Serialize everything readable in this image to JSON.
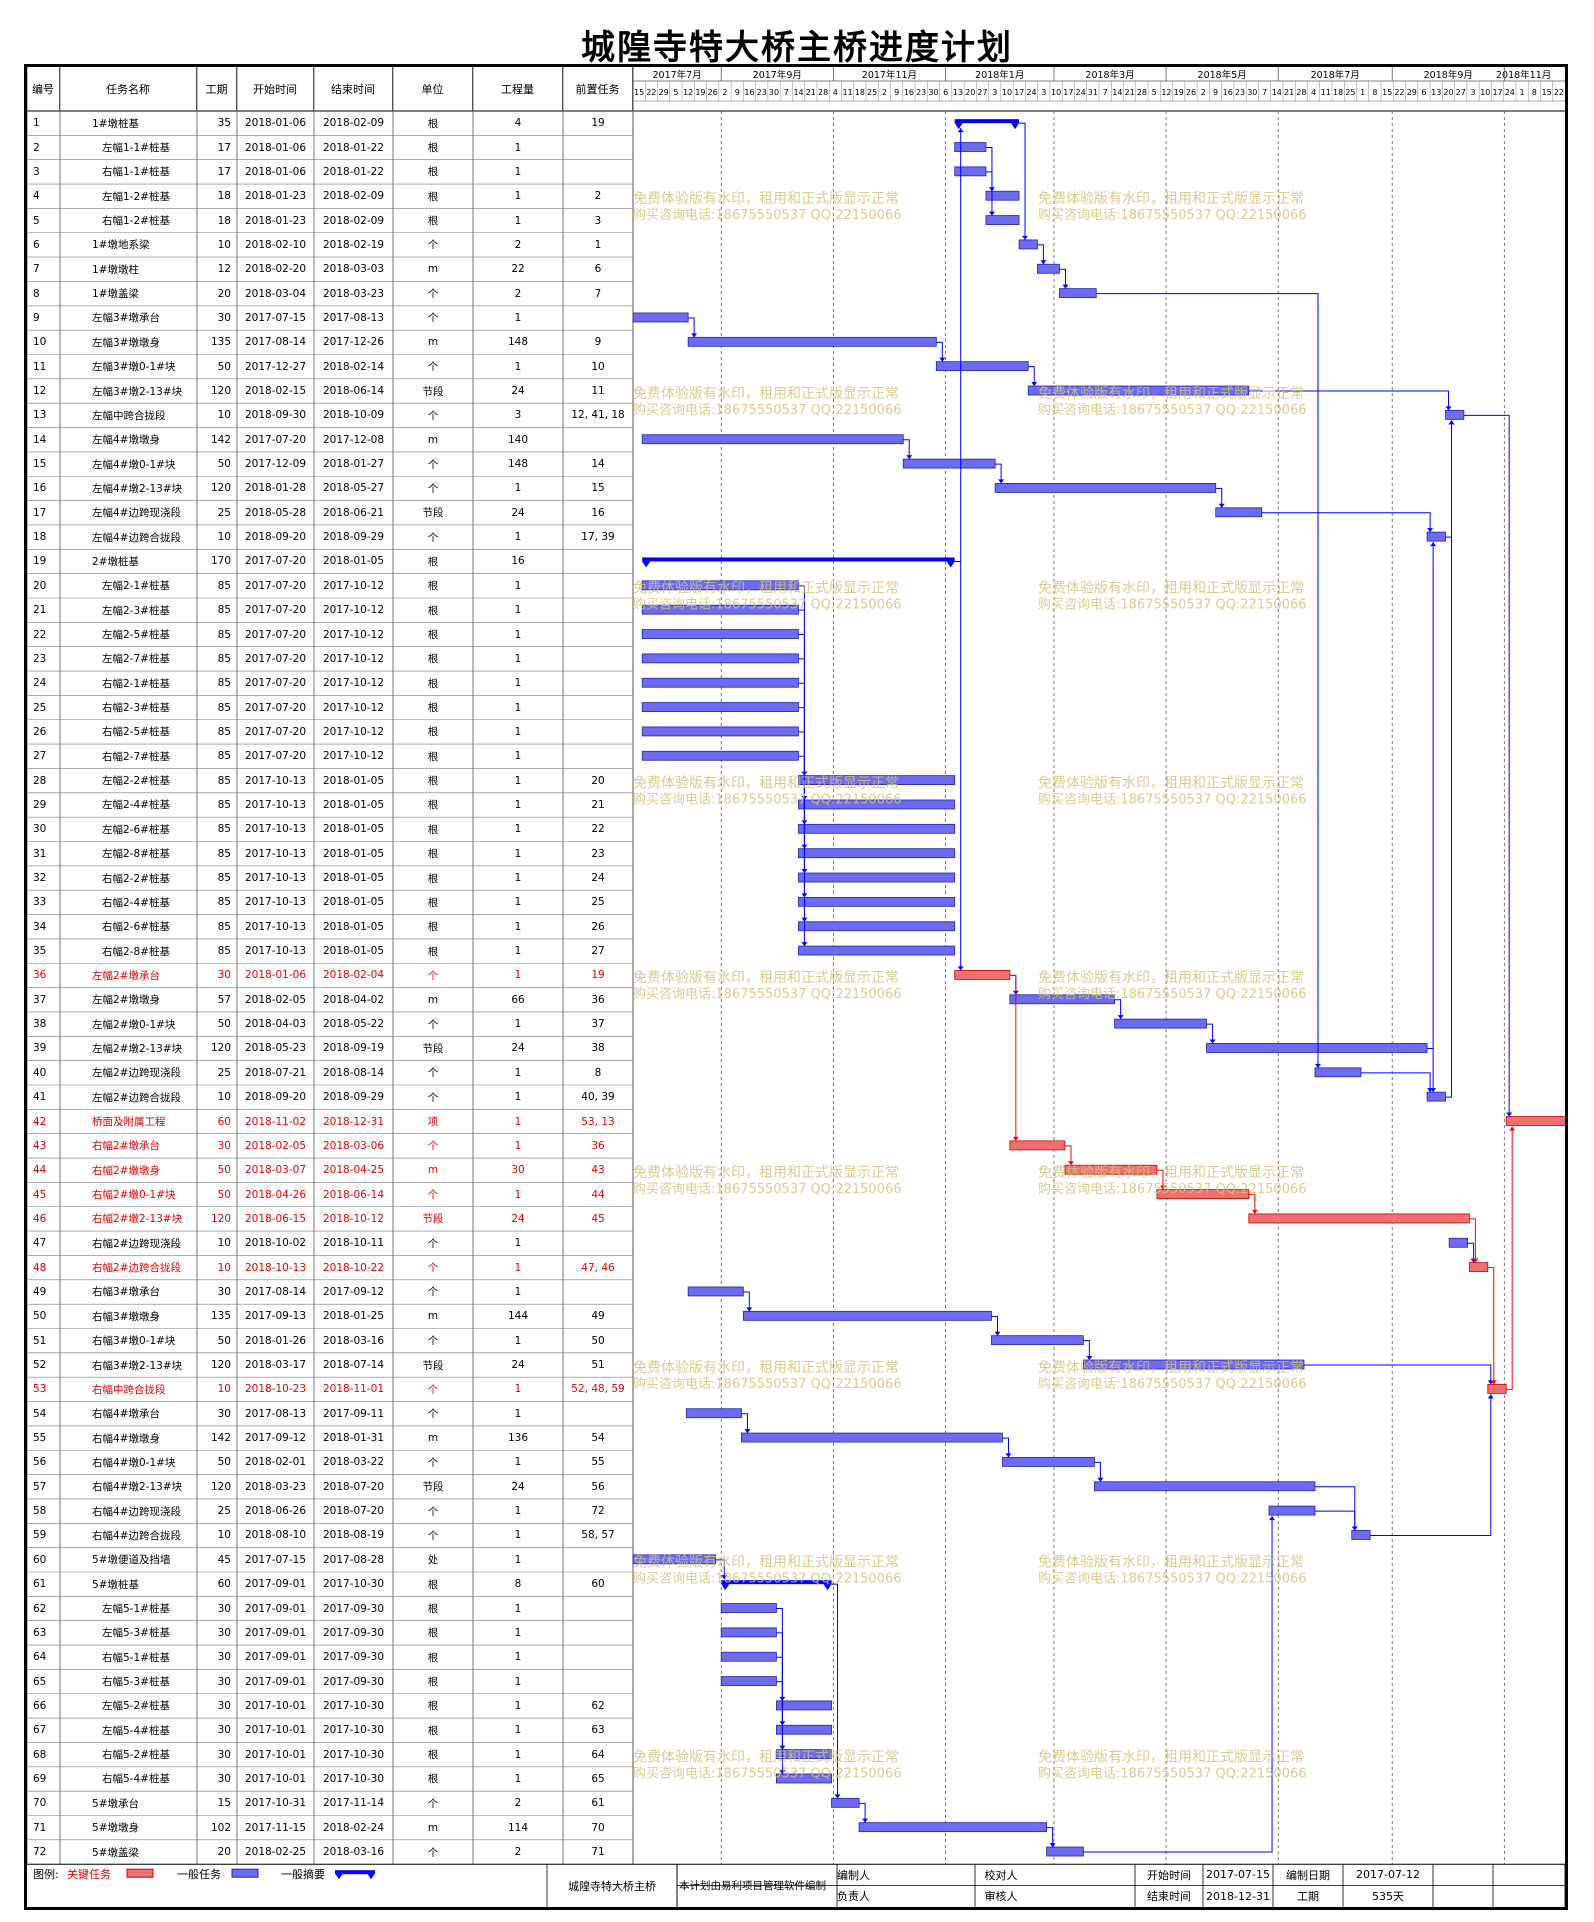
{
  "title": "城隍寺特大桥主桥进度计划",
  "columns": [
    "编号",
    "任务名称",
    "工期",
    "开始时间",
    "结束时间",
    "单位",
    "工程量",
    "前置任务"
  ],
  "timeline": {
    "months": [
      "2017年7月",
      "2017年9月",
      "2017年11月",
      "2018年1月",
      "2018年3月",
      "2018年5月",
      "2018年7月",
      "2018年9月",
      "2018年11月"
    ],
    "days": [
      "15",
      "22",
      "29",
      "5",
      "12",
      "19",
      "26",
      "2",
      "9",
      "16",
      "23",
      "30",
      "7",
      "14",
      "21",
      "28",
      "4",
      "11",
      "18",
      "25",
      "2",
      "9",
      "16",
      "23",
      "30",
      "6",
      "13",
      "20",
      "27",
      "3",
      "10",
      "17",
      "24",
      "3",
      "10",
      "17",
      "24",
      "31",
      "7",
      "14",
      "21",
      "28",
      "5",
      "12",
      "19",
      "26",
      "2",
      "9",
      "16",
      "23",
      "30",
      "7",
      "14",
      "21",
      "28",
      "4",
      "11",
      "18",
      "25",
      "1",
      "8",
      "15",
      "22",
      "29",
      "6",
      "13",
      "20",
      "27",
      "3",
      "10",
      "17",
      "24",
      "1",
      "8",
      "15",
      "22"
    ]
  },
  "tasks": [
    {
      "id": "1",
      "name": "1#墩桩基",
      "dur": "35",
      "start": "2018-01-06",
      "end": "2018-02-09",
      "unit": "根",
      "qty": "4",
      "pred": "19",
      "type": "summary",
      "level": 0
    },
    {
      "id": "2",
      "name": "左幅1-1#桩基",
      "dur": "17",
      "start": "2018-01-06",
      "end": "2018-01-22",
      "unit": "根",
      "qty": "1",
      "pred": "",
      "type": "normal",
      "level": 1
    },
    {
      "id": "3",
      "name": "右幅1-1#桩基",
      "dur": "17",
      "start": "2018-01-06",
      "end": "2018-01-22",
      "unit": "根",
      "qty": "1",
      "pred": "",
      "type": "normal",
      "level": 1
    },
    {
      "id": "4",
      "name": "左幅1-2#桩基",
      "dur": "18",
      "start": "2018-01-23",
      "end": "2018-02-09",
      "unit": "根",
      "qty": "1",
      "pred": "2",
      "type": "normal",
      "level": 1
    },
    {
      "id": "5",
      "name": "右幅1-2#桩基",
      "dur": "18",
      "start": "2018-01-23",
      "end": "2018-02-09",
      "unit": "根",
      "qty": "1",
      "pred": "3",
      "type": "normal",
      "level": 1
    },
    {
      "id": "6",
      "name": "1#墩地系梁",
      "dur": "10",
      "start": "2018-02-10",
      "end": "2018-02-19",
      "unit": "个",
      "qty": "2",
      "pred": "1",
      "type": "normal",
      "level": 0
    },
    {
      "id": "7",
      "name": "1#墩墩柱",
      "dur": "12",
      "start": "2018-02-20",
      "end": "2018-03-03",
      "unit": "m",
      "qty": "22",
      "pred": "6",
      "type": "normal",
      "level": 0
    },
    {
      "id": "8",
      "name": "1#墩盖梁",
      "dur": "20",
      "start": "2018-03-04",
      "end": "2018-03-23",
      "unit": "个",
      "qty": "2",
      "pred": "7",
      "type": "normal",
      "level": 0
    },
    {
      "id": "9",
      "name": "左幅3#墩承台",
      "dur": "30",
      "start": "2017-07-15",
      "end": "2017-08-13",
      "unit": "个",
      "qty": "1",
      "pred": "",
      "type": "normal",
      "level": 0
    },
    {
      "id": "10",
      "name": "左幅3#墩墩身",
      "dur": "135",
      "start": "2017-08-14",
      "end": "2017-12-26",
      "unit": "m",
      "qty": "148",
      "pred": "9",
      "type": "normal",
      "level": 0
    },
    {
      "id": "11",
      "name": "左幅3#墩0-1#块",
      "dur": "50",
      "start": "2017-12-27",
      "end": "2018-02-14",
      "unit": "个",
      "qty": "1",
      "pred": "10",
      "type": "normal",
      "level": 0
    },
    {
      "id": "12",
      "name": "左幅3#墩2-13#块",
      "dur": "120",
      "start": "2018-02-15",
      "end": "2018-06-14",
      "unit": "节段",
      "qty": "24",
      "pred": "11",
      "type": "normal",
      "level": 0
    },
    {
      "id": "13",
      "name": "左幅中跨合拢段",
      "dur": "10",
      "start": "2018-09-30",
      "end": "2018-10-09",
      "unit": "个",
      "qty": "3",
      "pred": "12, 41, 18",
      "type": "normal",
      "level": 0
    },
    {
      "id": "14",
      "name": "左幅4#墩墩身",
      "dur": "142",
      "start": "2017-07-20",
      "end": "2017-12-08",
      "unit": "m",
      "qty": "140",
      "pred": "",
      "type": "normal",
      "level": 0
    },
    {
      "id": "15",
      "name": "左幅4#墩0-1#块",
      "dur": "50",
      "start": "2017-12-09",
      "end": "2018-01-27",
      "unit": "个",
      "qty": "148",
      "pred": "14",
      "type": "normal",
      "level": 0
    },
    {
      "id": "16",
      "name": "左幅4#墩2-13#块",
      "dur": "120",
      "start": "2018-01-28",
      "end": "2018-05-27",
      "unit": "个",
      "qty": "1",
      "pred": "15",
      "type": "normal",
      "level": 0
    },
    {
      "id": "17",
      "name": "左幅4#边跨现浇段",
      "dur": "25",
      "start": "2018-05-28",
      "end": "2018-06-21",
      "unit": "节段",
      "qty": "24",
      "pred": "16",
      "type": "normal",
      "level": 0
    },
    {
      "id": "18",
      "name": "左幅4#边跨合拢段",
      "dur": "10",
      "start": "2018-09-20",
      "end": "2018-09-29",
      "unit": "个",
      "qty": "1",
      "pred": "17, 39",
      "type": "normal",
      "level": 0
    },
    {
      "id": "19",
      "name": "2#墩桩基",
      "dur": "170",
      "start": "2017-07-20",
      "end": "2018-01-05",
      "unit": "根",
      "qty": "16",
      "pred": "",
      "type": "summary",
      "level": 0
    },
    {
      "id": "20",
      "name": "左幅2-1#桩基",
      "dur": "85",
      "start": "2017-07-20",
      "end": "2017-10-12",
      "unit": "根",
      "qty": "1",
      "pred": "",
      "type": "normal",
      "level": 1
    },
    {
      "id": "21",
      "name": "左幅2-3#桩基",
      "dur": "85",
      "start": "2017-07-20",
      "end": "2017-10-12",
      "unit": "根",
      "qty": "1",
      "pred": "",
      "type": "normal",
      "level": 1
    },
    {
      "id": "22",
      "name": "左幅2-5#桩基",
      "dur": "85",
      "start": "2017-07-20",
      "end": "2017-10-12",
      "unit": "根",
      "qty": "1",
      "pred": "",
      "type": "normal",
      "level": 1
    },
    {
      "id": "23",
      "name": "左幅2-7#桩基",
      "dur": "85",
      "start": "2017-07-20",
      "end": "2017-10-12",
      "unit": "根",
      "qty": "1",
      "pred": "",
      "type": "normal",
      "level": 1
    },
    {
      "id": "24",
      "name": "右幅2-1#桩基",
      "dur": "85",
      "start": "2017-07-20",
      "end": "2017-10-12",
      "unit": "根",
      "qty": "1",
      "pred": "",
      "type": "normal",
      "level": 1
    },
    {
      "id": "25",
      "name": "右幅2-3#桩基",
      "dur": "85",
      "start": "2017-07-20",
      "end": "2017-10-12",
      "unit": "根",
      "qty": "1",
      "pred": "",
      "type": "normal",
      "level": 1
    },
    {
      "id": "26",
      "name": "右幅2-5#桩基",
      "dur": "85",
      "start": "2017-07-20",
      "end": "2017-10-12",
      "unit": "根",
      "qty": "1",
      "pred": "",
      "type": "normal",
      "level": 1
    },
    {
      "id": "27",
      "name": "右幅2-7#桩基",
      "dur": "85",
      "start": "2017-07-20",
      "end": "2017-10-12",
      "unit": "根",
      "qty": "1",
      "pred": "",
      "type": "normal",
      "level": 1
    },
    {
      "id": "28",
      "name": "左幅2-2#桩基",
      "dur": "85",
      "start": "2017-10-13",
      "end": "2018-01-05",
      "unit": "根",
      "qty": "1",
      "pred": "20",
      "type": "normal",
      "level": 1
    },
    {
      "id": "29",
      "name": "左幅2-4#桩基",
      "dur": "85",
      "start": "2017-10-13",
      "end": "2018-01-05",
      "unit": "根",
      "qty": "1",
      "pred": "21",
      "type": "normal",
      "level": 1
    },
    {
      "id": "30",
      "name": "左幅2-6#桩基",
      "dur": "85",
      "start": "2017-10-13",
      "end": "2018-01-05",
      "unit": "根",
      "qty": "1",
      "pred": "22",
      "type": "normal",
      "level": 1
    },
    {
      "id": "31",
      "name": "左幅2-8#桩基",
      "dur": "85",
      "start": "2017-10-13",
      "end": "2018-01-05",
      "unit": "根",
      "qty": "1",
      "pred": "23",
      "type": "normal",
      "level": 1
    },
    {
      "id": "32",
      "name": "右幅2-2#桩基",
      "dur": "85",
      "start": "2017-10-13",
      "end": "2018-01-05",
      "unit": "根",
      "qty": "1",
      "pred": "24",
      "type": "normal",
      "level": 1
    },
    {
      "id": "33",
      "name": "右幅2-4#桩基",
      "dur": "85",
      "start": "2017-10-13",
      "end": "2018-01-05",
      "unit": "根",
      "qty": "1",
      "pred": "25",
      "type": "normal",
      "level": 1
    },
    {
      "id": "34",
      "name": "右幅2-6#桩基",
      "dur": "85",
      "start": "2017-10-13",
      "end": "2018-01-05",
      "unit": "根",
      "qty": "1",
      "pred": "26",
      "type": "normal",
      "level": 1
    },
    {
      "id": "35",
      "name": "右幅2-8#桩基",
      "dur": "85",
      "start": "2017-10-13",
      "end": "2018-01-05",
      "unit": "根",
      "qty": "1",
      "pred": "27",
      "type": "normal",
      "level": 1
    },
    {
      "id": "36",
      "name": "左幅2#墩承台",
      "dur": "30",
      "start": "2018-01-06",
      "end": "2018-02-04",
      "unit": "个",
      "qty": "1",
      "pred": "19",
      "type": "critical",
      "level": 0
    },
    {
      "id": "37",
      "name": "左幅2#墩墩身",
      "dur": "57",
      "start": "2018-02-05",
      "end": "2018-04-02",
      "unit": "m",
      "qty": "66",
      "pred": "36",
      "type": "normal",
      "level": 0
    },
    {
      "id": "38",
      "name": "左幅2#墩0-1#块",
      "dur": "50",
      "start": "2018-04-03",
      "end": "2018-05-22",
      "unit": "个",
      "qty": "1",
      "pred": "37",
      "type": "normal",
      "level": 0
    },
    {
      "id": "39",
      "name": "左幅2#墩2-13#块",
      "dur": "120",
      "start": "2018-05-23",
      "end": "2018-09-19",
      "unit": "节段",
      "qty": "24",
      "pred": "38",
      "type": "normal",
      "level": 0
    },
    {
      "id": "40",
      "name": "左幅2#边跨现浇段",
      "dur": "25",
      "start": "2018-07-21",
      "end": "2018-08-14",
      "unit": "个",
      "qty": "1",
      "pred": "8",
      "type": "normal",
      "level": 0
    },
    {
      "id": "41",
      "name": "左幅2#边跨合拢段",
      "dur": "10",
      "start": "2018-09-20",
      "end": "2018-09-29",
      "unit": "个",
      "qty": "1",
      "pred": "40, 39",
      "type": "normal",
      "level": 0
    },
    {
      "id": "42",
      "name": "桥面及附属工程",
      "dur": "60",
      "start": "2018-11-02",
      "end": "2018-12-31",
      "unit": "项",
      "qty": "1",
      "pred": "53, 13",
      "type": "critical",
      "level": 0
    },
    {
      "id": "43",
      "name": "右幅2#墩承台",
      "dur": "30",
      "start": "2018-02-05",
      "end": "2018-03-06",
      "unit": "个",
      "qty": "1",
      "pred": "36",
      "type": "critical",
      "level": 0
    },
    {
      "id": "44",
      "name": "右幅2#墩墩身",
      "dur": "50",
      "start": "2018-03-07",
      "end": "2018-04-25",
      "unit": "m",
      "qty": "30",
      "pred": "43",
      "type": "critical",
      "level": 0
    },
    {
      "id": "45",
      "name": "右幅2#墩0-1#块",
      "dur": "50",
      "start": "2018-04-26",
      "end": "2018-06-14",
      "unit": "个",
      "qty": "1",
      "pred": "44",
      "type": "critical",
      "level": 0
    },
    {
      "id": "46",
      "name": "右幅2#墩2-13#块",
      "dur": "120",
      "start": "2018-06-15",
      "end": "2018-10-12",
      "unit": "节段",
      "qty": "24",
      "pred": "45",
      "type": "critical",
      "level": 0
    },
    {
      "id": "47",
      "name": "右幅2#边跨现浇段",
      "dur": "10",
      "start": "2018-10-02",
      "end": "2018-10-11",
      "unit": "个",
      "qty": "1",
      "pred": "",
      "type": "normal",
      "level": 0
    },
    {
      "id": "48",
      "name": "右幅2#边跨合拢段",
      "dur": "10",
      "start": "2018-10-13",
      "end": "2018-10-22",
      "unit": "个",
      "qty": "1",
      "pred": "47, 46",
      "type": "critical",
      "level": 0
    },
    {
      "id": "49",
      "name": "右幅3#墩承台",
      "dur": "30",
      "start": "2017-08-14",
      "end": "2017-09-12",
      "unit": "个",
      "qty": "1",
      "pred": "",
      "type": "normal",
      "level": 0
    },
    {
      "id": "50",
      "name": "右幅3#墩墩身",
      "dur": "135",
      "start": "2017-09-13",
      "end": "2018-01-25",
      "unit": "m",
      "qty": "144",
      "pred": "49",
      "type": "normal",
      "level": 0
    },
    {
      "id": "51",
      "name": "右幅3#墩0-1#块",
      "dur": "50",
      "start": "2018-01-26",
      "end": "2018-03-16",
      "unit": "个",
      "qty": "1",
      "pred": "50",
      "type": "normal",
      "level": 0
    },
    {
      "id": "52",
      "name": "右幅3#墩2-13#块",
      "dur": "120",
      "start": "2018-03-17",
      "end": "2018-07-14",
      "unit": "节段",
      "qty": "24",
      "pred": "51",
      "type": "normal",
      "level": 0
    },
    {
      "id": "53",
      "name": "右幅中跨合拢段",
      "dur": "10",
      "start": "2018-10-23",
      "end": "2018-11-01",
      "unit": "个",
      "qty": "1",
      "pred": "52, 48, 59",
      "type": "critical",
      "level": 0
    },
    {
      "id": "54",
      "name": "右幅4#墩承台",
      "dur": "30",
      "start": "2017-08-13",
      "end": "2017-09-11",
      "unit": "个",
      "qty": "1",
      "pred": "",
      "type": "normal",
      "level": 0
    },
    {
      "id": "55",
      "name": "右幅4#墩墩身",
      "dur": "142",
      "start": "2017-09-12",
      "end": "2018-01-31",
      "unit": "m",
      "qty": "136",
      "pred": "54",
      "type": "normal",
      "level": 0
    },
    {
      "id": "56",
      "name": "右幅4#墩0-1#块",
      "dur": "50",
      "start": "2018-02-01",
      "end": "2018-03-22",
      "unit": "个",
      "qty": "1",
      "pred": "55",
      "type": "normal",
      "level": 0
    },
    {
      "id": "57",
      "name": "右幅4#墩2-13#块",
      "dur": "120",
      "start": "2018-03-23",
      "end": "2018-07-20",
      "unit": "节段",
      "qty": "24",
      "pred": "56",
      "type": "normal",
      "level": 0
    },
    {
      "id": "58",
      "name": "右幅4#边跨现浇段",
      "dur": "25",
      "start": "2018-06-26",
      "end": "2018-07-20",
      "unit": "个",
      "qty": "1",
      "pred": "72",
      "type": "normal",
      "level": 0
    },
    {
      "id": "59",
      "name": "右幅4#边跨合拢段",
      "dur": "10",
      "start": "2018-08-10",
      "end": "2018-08-19",
      "unit": "个",
      "qty": "1",
      "pred": "58, 57",
      "type": "normal",
      "level": 0
    },
    {
      "id": "60",
      "name": "5#墩便道及挡墙",
      "dur": "45",
      "start": "2017-07-15",
      "end": "2017-08-28",
      "unit": "处",
      "qty": "1",
      "pred": "",
      "type": "normal",
      "level": 0
    },
    {
      "id": "61",
      "name": "5#墩桩基",
      "dur": "60",
      "start": "2017-09-01",
      "end": "2017-10-30",
      "unit": "根",
      "qty": "8",
      "pred": "60",
      "type": "summary",
      "level": 0
    },
    {
      "id": "62",
      "name": "左幅5-1#桩基",
      "dur": "30",
      "start": "2017-09-01",
      "end": "2017-09-30",
      "unit": "根",
      "qty": "1",
      "pred": "",
      "type": "normal",
      "level": 1
    },
    {
      "id": "63",
      "name": "左幅5-3#桩基",
      "dur": "30",
      "start": "2017-09-01",
      "end": "2017-09-30",
      "unit": "根",
      "qty": "1",
      "pred": "",
      "type": "normal",
      "level": 1
    },
    {
      "id": "64",
      "name": "右幅5-1#桩基",
      "dur": "30",
      "start": "2017-09-01",
      "end": "2017-09-30",
      "unit": "根",
      "qty": "1",
      "pred": "",
      "type": "normal",
      "level": 1
    },
    {
      "id": "65",
      "name": "右幅5-3#桩基",
      "dur": "30",
      "start": "2017-09-01",
      "end": "2017-09-30",
      "unit": "根",
      "qty": "1",
      "pred": "",
      "type": "normal",
      "level": 1
    },
    {
      "id": "66",
      "name": "左幅5-2#桩基",
      "dur": "30",
      "start": "2017-10-01",
      "end": "2017-10-30",
      "unit": "根",
      "qty": "1",
      "pred": "62",
      "type": "normal",
      "level": 1
    },
    {
      "id": "67",
      "name": "左幅5-4#桩基",
      "dur": "30",
      "start": "2017-10-01",
      "end": "2017-10-30",
      "unit": "根",
      "qty": "1",
      "pred": "63",
      "type": "normal",
      "level": 1
    },
    {
      "id": "68",
      "name": "右幅5-2#桩基",
      "dur": "30",
      "start": "2017-10-01",
      "end": "2017-10-30",
      "unit": "根",
      "qty": "1",
      "pred": "64",
      "type": "normal",
      "level": 1
    },
    {
      "id": "69",
      "name": "右幅5-4#桩基",
      "dur": "30",
      "start": "2017-10-01",
      "end": "2017-10-30",
      "unit": "根",
      "qty": "1",
      "pred": "65",
      "type": "normal",
      "level": 1
    },
    {
      "id": "70",
      "name": "5#墩承台",
      "dur": "15",
      "start": "2017-10-31",
      "end": "2017-11-14",
      "unit": "个",
      "qty": "2",
      "pred": "61",
      "type": "normal",
      "level": 0
    },
    {
      "id": "71",
      "name": "5#墩墩身",
      "dur": "102",
      "start": "2017-11-15",
      "end": "2018-02-24",
      "unit": "m",
      "qty": "114",
      "pred": "70",
      "type": "normal",
      "level": 0
    },
    {
      "id": "72",
      "name": "5#墩盖梁",
      "dur": "20",
      "start": "2018-02-25",
      "end": "2018-03-16",
      "unit": "个",
      "qty": "2",
      "pred": "71",
      "type": "normal",
      "level": 0
    }
  ],
  "legend": {
    "label": "图例:",
    "critical": "关键任务",
    "normal": "一般任务",
    "summary": "一般摘要"
  },
  "footer": {
    "project": "城隍寺特大桥主桥",
    "note": "本计划由易利项目管理软件编制",
    "made_by": "编制人",
    "checked_by": "校对人",
    "owner": "负责人",
    "reviewer": "审核人",
    "start_label": "开始时间",
    "start_value": "2017-07-15",
    "end_label": "结束时间",
    "end_value": "2018-12-31",
    "date_label": "编制日期",
    "date_value": "2017-07-12",
    "dur_label": "工期",
    "dur_value": "535天"
  },
  "watermark": {
    "line1": "免费体验版有水印，租用和正式版显示正常",
    "line2": "购买咨询电话:18675550537 QQ:22150066"
  },
  "colors": {
    "normal_bar": "#6c6cf0",
    "summary_bar": "#0000ff",
    "critical_bar": "#f07070",
    "critical_text": "#e00000",
    "link": "#0000ff",
    "critical_link": "#ff0000",
    "watermark": "#d4c27a"
  }
}
